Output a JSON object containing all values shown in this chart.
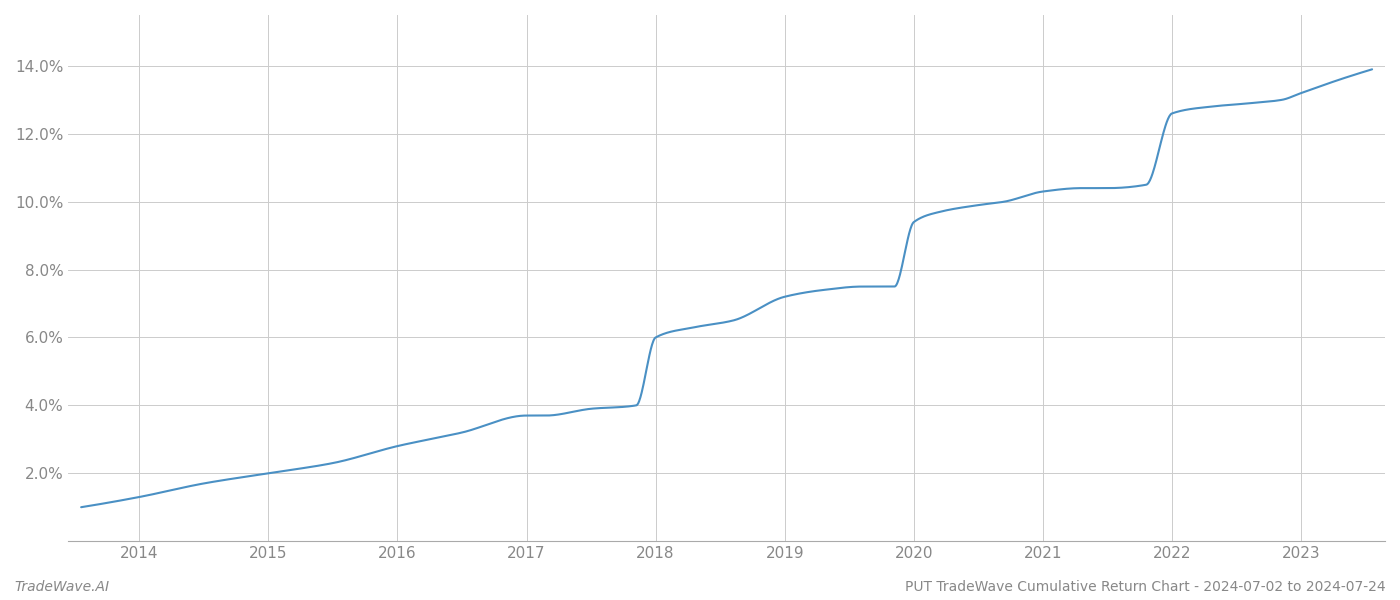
{
  "title": "",
  "footer_left": "TradeWave.AI",
  "footer_right": "PUT TradeWave Cumulative Return Chart - 2024-07-02 to 2024-07-24",
  "line_color": "#4a90c4",
  "background_color": "#ffffff",
  "grid_color": "#cccccc",
  "x_years": [
    2014,
    2015,
    2016,
    2017,
    2018,
    2019,
    2020,
    2021,
    2022,
    2023
  ],
  "ylim": [
    0.0,
    0.155
  ],
  "yticks": [
    0.02,
    0.04,
    0.06,
    0.08,
    0.1,
    0.12,
    0.14
  ],
  "key_x": [
    2013.55,
    2014.0,
    2014.5,
    2015.0,
    2015.5,
    2016.0,
    2016.5,
    2017.0,
    2017.15,
    2017.5,
    2017.85,
    2018.0,
    2018.3,
    2018.6,
    2019.0,
    2019.3,
    2019.6,
    2019.85,
    2020.0,
    2020.2,
    2020.5,
    2020.7,
    2021.0,
    2021.3,
    2021.5,
    2021.8,
    2022.0,
    2022.3,
    2022.6,
    2022.85,
    2023.0,
    2023.3,
    2023.55
  ],
  "key_y": [
    0.01,
    0.013,
    0.017,
    0.02,
    0.023,
    0.028,
    0.032,
    0.037,
    0.037,
    0.039,
    0.04,
    0.06,
    0.063,
    0.065,
    0.072,
    0.074,
    0.075,
    0.075,
    0.094,
    0.097,
    0.099,
    0.1,
    0.103,
    0.104,
    0.104,
    0.105,
    0.126,
    0.128,
    0.129,
    0.13,
    0.132,
    0.136,
    0.139
  ],
  "spine_color": "#aaaaaa",
  "tick_color": "#888888",
  "label_color": "#888888",
  "footer_color": "#888888",
  "line_width": 1.5,
  "xlim": [
    2013.45,
    2023.65
  ]
}
